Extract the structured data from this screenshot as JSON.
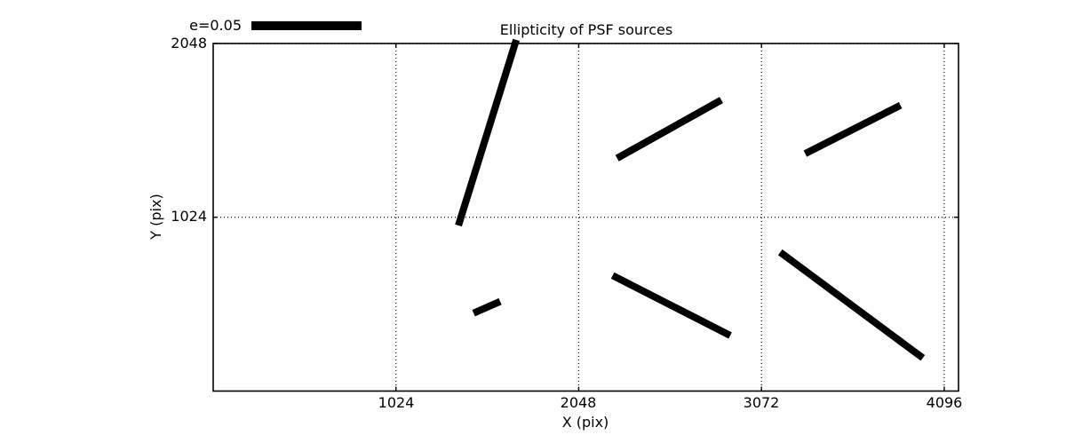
{
  "figure": {
    "background": "#ffffff",
    "ink_color": "#000000"
  },
  "chart_data": {
    "type": "line",
    "subtype": "quiver-ellipticity-sticks",
    "title": "Ellipticity of PSF sources",
    "xlabel": "X (pix)",
    "ylabel": "Y (pix)",
    "xlim": [
      0,
      4176
    ],
    "ylim": [
      0,
      2048
    ],
    "xticks": [
      1024,
      2048,
      3072,
      4096
    ],
    "yticks": [
      1024,
      2048
    ],
    "xtick_labels": [
      "1024",
      "2048",
      "3072",
      "4096"
    ],
    "ytick_labels": [
      "1024",
      "2048"
    ],
    "grid": true,
    "grid_linestyle": "dotted",
    "tick_direction": "in",
    "legend": {
      "label": "e=0.05",
      "scale_ellipticity": 0.05,
      "location": "outside-upper-left"
    },
    "sticks": [
      {
        "x1": 1374,
        "y1": 976,
        "x2": 1698,
        "y2": 2069
      },
      {
        "x1": 2263,
        "y1": 1372,
        "x2": 2847,
        "y2": 1715
      },
      {
        "x1": 3317,
        "y1": 1399,
        "x2": 3851,
        "y2": 1684
      },
      {
        "x1": 1459,
        "y1": 459,
        "x2": 1608,
        "y2": 528
      },
      {
        "x1": 2238,
        "y1": 681,
        "x2": 2897,
        "y2": 327
      },
      {
        "x1": 3177,
        "y1": 818,
        "x2": 3976,
        "y2": 195
      }
    ]
  }
}
